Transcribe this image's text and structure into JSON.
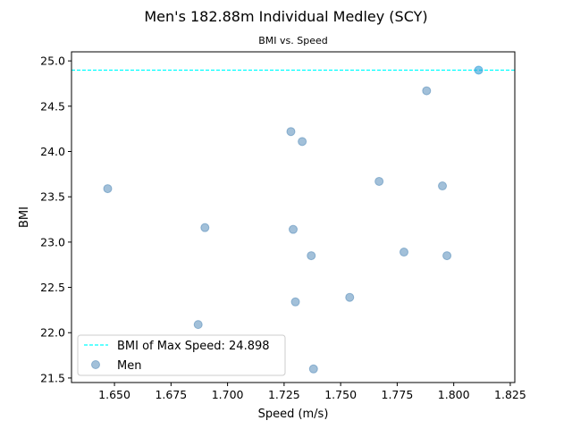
{
  "chart_data": {
    "type": "scatter",
    "title": "Men's 182.88m Individual Medley (SCY)",
    "subtitle": "BMI vs. Speed",
    "xlabel": "Speed (m/s)",
    "ylabel": "BMI",
    "xlim": [
      1.631,
      1.827
    ],
    "ylim": [
      21.45,
      25.1
    ],
    "x_ticks": [
      1.65,
      1.675,
      1.7,
      1.725,
      1.75,
      1.775,
      1.8,
      1.825
    ],
    "x_tick_labels": [
      "1.650",
      "1.675",
      "1.700",
      "1.725",
      "1.750",
      "1.775",
      "1.800",
      "1.825"
    ],
    "y_ticks": [
      21.5,
      22.0,
      22.5,
      23.0,
      23.5,
      24.0,
      24.5,
      25.0
    ],
    "y_tick_labels": [
      "21.5",
      "22.0",
      "22.5",
      "23.0",
      "23.5",
      "24.0",
      "24.5",
      "25.0"
    ],
    "grid": false,
    "legend_position": "lower-left",
    "reference_line": {
      "label": "BMI of Max Speed: 24.898",
      "y": 24.898,
      "color": "#00ffff",
      "style": "dashed"
    },
    "series": [
      {
        "name": "Men",
        "color": "#4682b4",
        "highlight_color": "#2e9fd8",
        "points": [
          {
            "x": 1.647,
            "y": 23.59
          },
          {
            "x": 1.687,
            "y": 22.09
          },
          {
            "x": 1.69,
            "y": 23.16
          },
          {
            "x": 1.728,
            "y": 24.22
          },
          {
            "x": 1.729,
            "y": 23.14
          },
          {
            "x": 1.73,
            "y": 22.34
          },
          {
            "x": 1.733,
            "y": 24.11
          },
          {
            "x": 1.737,
            "y": 22.85
          },
          {
            "x": 1.738,
            "y": 21.6
          },
          {
            "x": 1.754,
            "y": 22.39
          },
          {
            "x": 1.767,
            "y": 23.67
          },
          {
            "x": 1.778,
            "y": 22.89
          },
          {
            "x": 1.788,
            "y": 24.67
          },
          {
            "x": 1.795,
            "y": 23.62
          },
          {
            "x": 1.797,
            "y": 22.85
          },
          {
            "x": 1.811,
            "y": 24.898,
            "highlight": true
          }
        ]
      }
    ]
  }
}
